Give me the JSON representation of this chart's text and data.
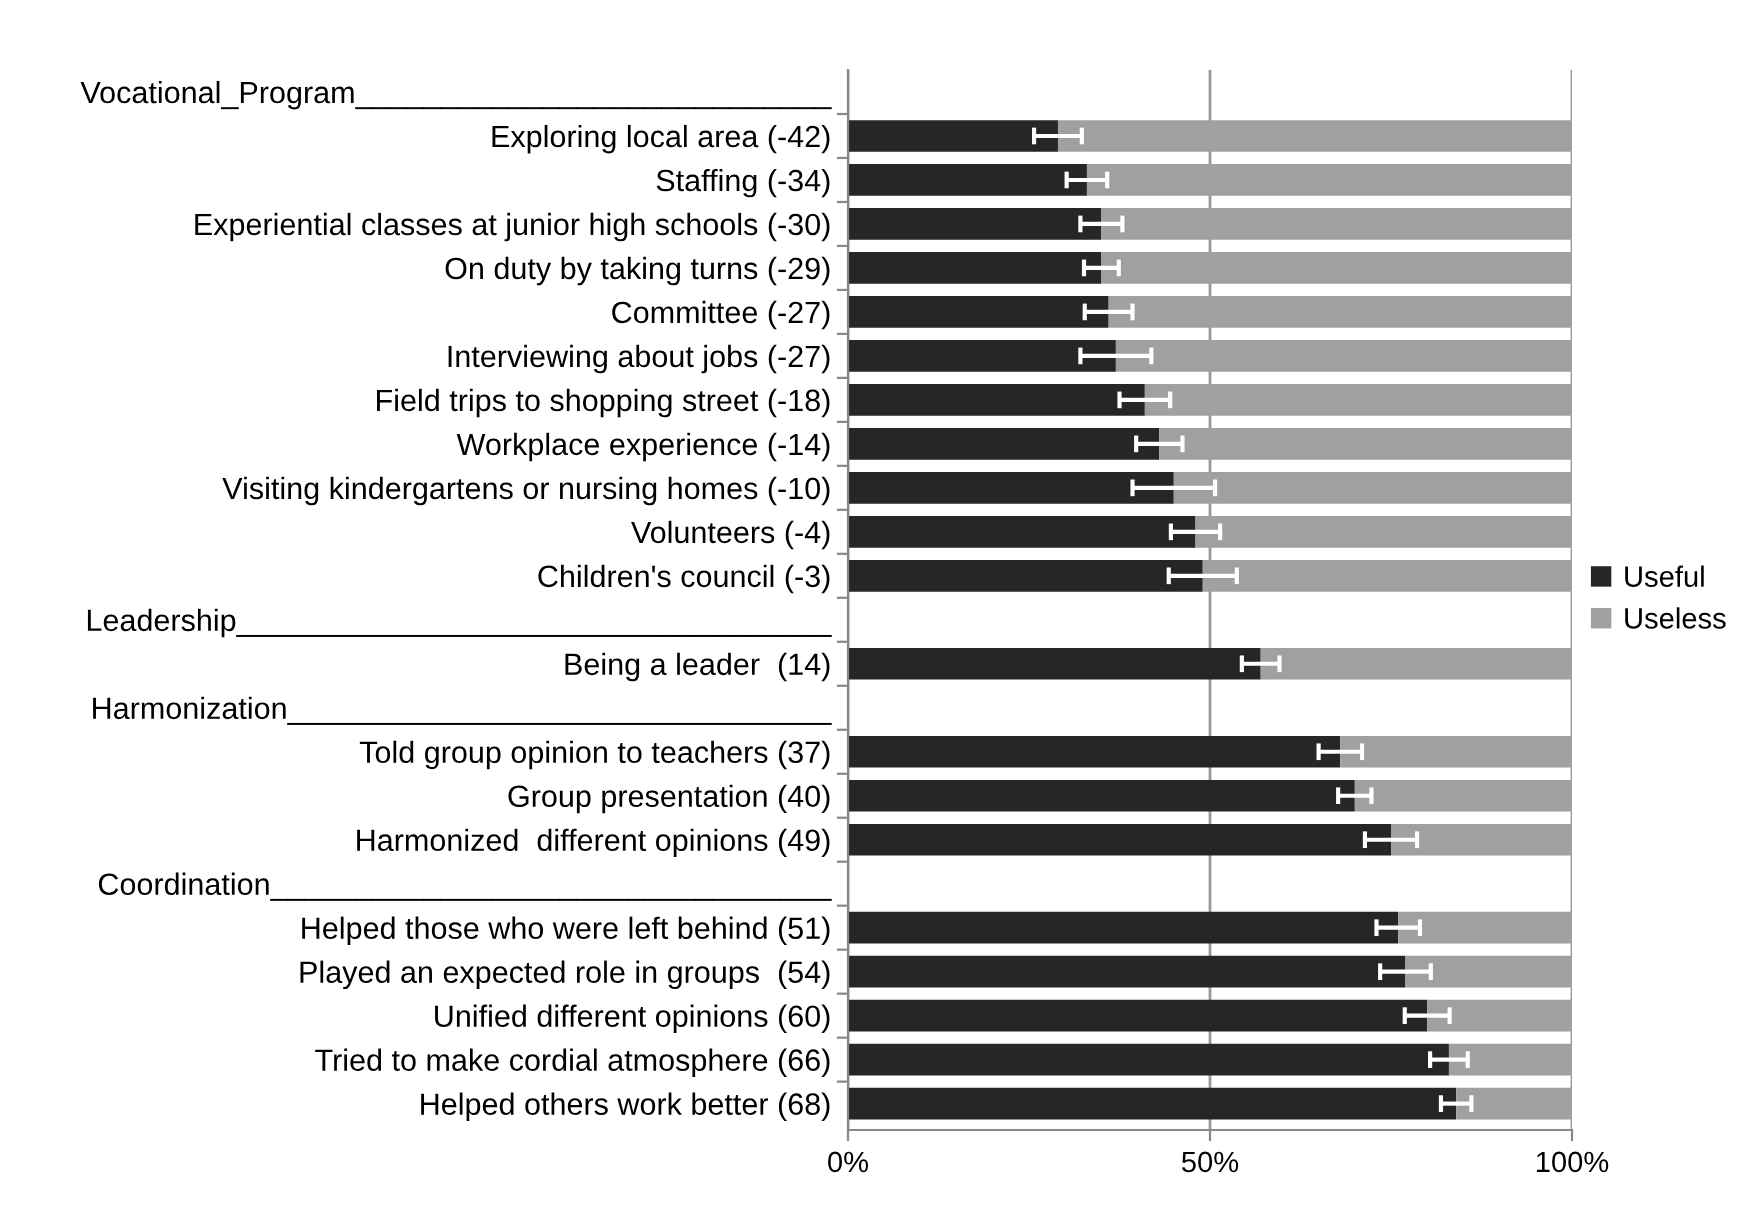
{
  "chart_data": {
    "type": "bar",
    "orientation": "horizontal",
    "stacked": true,
    "categories": [
      "Vocational_Program____________________________",
      "Exploring local area (-42)",
      "Staffing (-34)",
      "Experiential classes at junior high schools (-30)",
      "On duty by taking turns (-29)",
      "Committee (-27)",
      "Interviewing about jobs (-27)",
      "Field trips to shopping street (-18)",
      "Workplace experience (-14)",
      "Visiting kindergartens or nursing homes (-10)",
      "Volunteers (-4)",
      "Children's council (-3)",
      "Leadership___________________________________",
      "Being a leader  (14)",
      "Harmonization________________________________",
      "Told group opinion to teachers (37)",
      "Group presentation (40)",
      "Harmonized  different opinions (49)",
      "Coordination_________________________________",
      "Helped those who were left behind (51)",
      "Played an expected role in groups  (54)",
      "Unified different opinions (60)",
      "Tried to make cordial atmosphere (66)",
      "Helped others work better (68)"
    ],
    "series": [
      {
        "name": "Useful",
        "color": "#262626",
        "values": [
          null,
          29,
          33,
          35,
          35,
          36,
          37,
          41,
          43,
          45,
          48,
          49,
          null,
          57,
          null,
          68,
          70,
          75,
          null,
          76,
          77,
          80,
          83,
          84
        ],
        "errors": [
          null,
          3.3,
          2.8,
          2.9,
          2.4,
          3.3,
          4.9,
          3.5,
          3.2,
          5.7,
          3.4,
          4.7,
          null,
          2.6,
          null,
          3,
          2.3,
          3.6,
          null,
          3,
          3.5,
          3.1,
          2.6,
          2.1
        ]
      },
      {
        "name": "Useless",
        "color": "#a0a0a0",
        "values": [
          null,
          71,
          67,
          65,
          65,
          64,
          63,
          59,
          57,
          55,
          52,
          51,
          null,
          43,
          null,
          32,
          30,
          25,
          null,
          24,
          23,
          20,
          17,
          16
        ]
      }
    ],
    "xlim": [
      0,
      100
    ],
    "xticks": [
      {
        "value": 0,
        "label": "0%"
      },
      {
        "value": 50,
        "label": "50%"
      },
      {
        "value": 100,
        "label": "100%"
      }
    ],
    "grid": "x",
    "legend": "right"
  }
}
